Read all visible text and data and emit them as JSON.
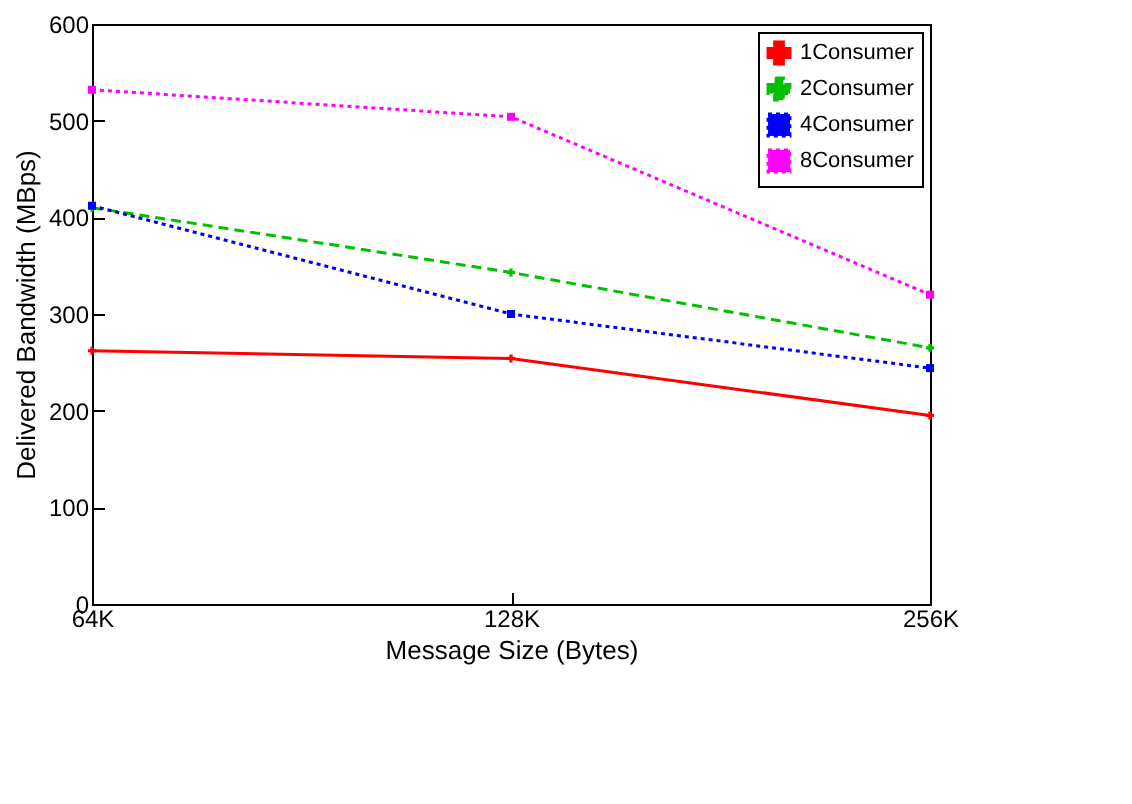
{
  "chart_data": {
    "type": "line",
    "xlabel": "Message Size (Bytes)",
    "ylabel": "Delivered Bandwidth (MBps)",
    "categories": [
      "64K",
      "128K",
      "256K"
    ],
    "ylim": [
      0,
      600
    ],
    "yticks": [
      0,
      100,
      200,
      300,
      400,
      500,
      600
    ],
    "grid": false,
    "legend": "top right",
    "series": [
      {
        "name": "1Consumer",
        "color": "#ff0000",
        "values": [
          262,
          254,
          195
        ],
        "marker": "cross",
        "line_style": "solid"
      },
      {
        "name": "2Consumer",
        "color": "#00c000",
        "values": [
          410,
          343,
          265
        ],
        "marker": "cross",
        "line_style": "dashed"
      },
      {
        "name": "4Consumer",
        "color": "#0000ff",
        "values": [
          412,
          300,
          244
        ],
        "marker": "square",
        "line_style": "dotted"
      },
      {
        "name": "8Consumer",
        "color": "#ff00ff",
        "values": [
          532,
          504,
          320
        ],
        "marker": "square",
        "line_style": "dotted"
      }
    ]
  }
}
